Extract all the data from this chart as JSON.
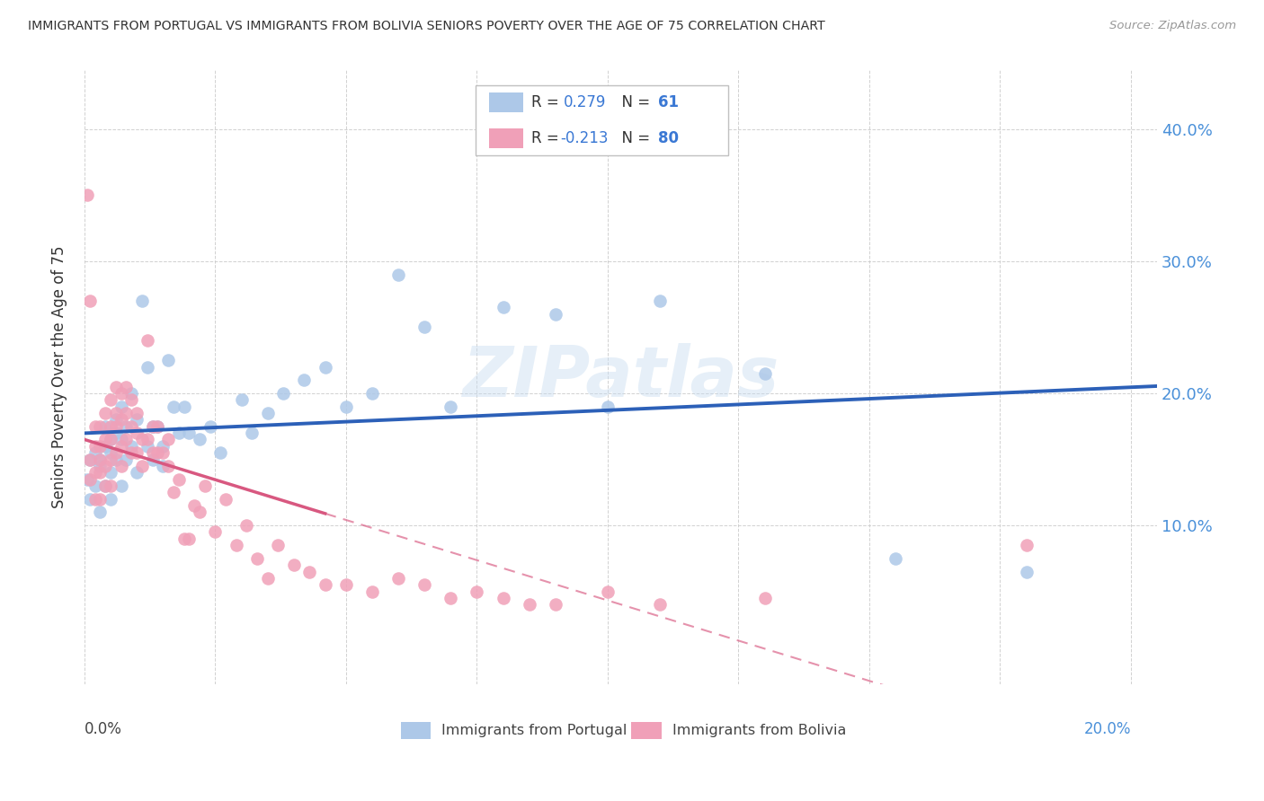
{
  "title": "IMMIGRANTS FROM PORTUGAL VS IMMIGRANTS FROM BOLIVIA SENIORS POVERTY OVER THE AGE OF 75 CORRELATION CHART",
  "source": "Source: ZipAtlas.com",
  "ylabel": "Seniors Poverty Over the Age of 75",
  "ytick_labels": [
    "10.0%",
    "20.0%",
    "30.0%",
    "40.0%"
  ],
  "ytick_values": [
    0.1,
    0.2,
    0.3,
    0.4
  ],
  "xlim": [
    0.0,
    0.205
  ],
  "ylim": [
    -0.02,
    0.445
  ],
  "r_portugal": 0.279,
  "n_portugal": 61,
  "r_bolivia": -0.213,
  "n_bolivia": 80,
  "color_portugal": "#adc8e8",
  "color_bolivia": "#f0a0b8",
  "color_portugal_line": "#2c60b8",
  "color_bolivia_line": "#d85880",
  "watermark": "ZIPatlas",
  "portugal_scatter_x": [
    0.0005,
    0.001,
    0.001,
    0.002,
    0.002,
    0.003,
    0.003,
    0.003,
    0.004,
    0.004,
    0.004,
    0.005,
    0.005,
    0.005,
    0.005,
    0.006,
    0.006,
    0.006,
    0.007,
    0.007,
    0.007,
    0.008,
    0.008,
    0.009,
    0.009,
    0.01,
    0.01,
    0.011,
    0.012,
    0.012,
    0.013,
    0.013,
    0.014,
    0.015,
    0.015,
    0.016,
    0.017,
    0.018,
    0.019,
    0.02,
    0.022,
    0.024,
    0.026,
    0.03,
    0.032,
    0.035,
    0.038,
    0.042,
    0.046,
    0.05,
    0.055,
    0.06,
    0.065,
    0.07,
    0.08,
    0.09,
    0.1,
    0.11,
    0.13,
    0.155,
    0.18
  ],
  "portugal_scatter_y": [
    0.135,
    0.15,
    0.12,
    0.155,
    0.13,
    0.15,
    0.145,
    0.11,
    0.16,
    0.13,
    0.175,
    0.155,
    0.165,
    0.14,
    0.12,
    0.17,
    0.18,
    0.15,
    0.165,
    0.19,
    0.13,
    0.175,
    0.15,
    0.2,
    0.16,
    0.14,
    0.18,
    0.27,
    0.16,
    0.22,
    0.15,
    0.175,
    0.175,
    0.16,
    0.145,
    0.225,
    0.19,
    0.17,
    0.19,
    0.17,
    0.165,
    0.175,
    0.155,
    0.195,
    0.17,
    0.185,
    0.2,
    0.21,
    0.22,
    0.19,
    0.2,
    0.29,
    0.25,
    0.19,
    0.265,
    0.26,
    0.19,
    0.27,
    0.215,
    0.075,
    0.065
  ],
  "bolivia_scatter_x": [
    0.0005,
    0.001,
    0.001,
    0.001,
    0.002,
    0.002,
    0.002,
    0.002,
    0.003,
    0.003,
    0.003,
    0.003,
    0.003,
    0.004,
    0.004,
    0.004,
    0.004,
    0.005,
    0.005,
    0.005,
    0.005,
    0.005,
    0.006,
    0.006,
    0.006,
    0.006,
    0.007,
    0.007,
    0.007,
    0.007,
    0.008,
    0.008,
    0.008,
    0.009,
    0.009,
    0.009,
    0.01,
    0.01,
    0.01,
    0.011,
    0.011,
    0.012,
    0.012,
    0.013,
    0.013,
    0.014,
    0.014,
    0.015,
    0.016,
    0.016,
    0.017,
    0.018,
    0.019,
    0.02,
    0.021,
    0.022,
    0.023,
    0.025,
    0.027,
    0.029,
    0.031,
    0.033,
    0.035,
    0.037,
    0.04,
    0.043,
    0.046,
    0.05,
    0.055,
    0.06,
    0.065,
    0.07,
    0.075,
    0.08,
    0.085,
    0.09,
    0.1,
    0.11,
    0.13,
    0.18
  ],
  "bolivia_scatter_y": [
    0.35,
    0.27,
    0.15,
    0.135,
    0.175,
    0.16,
    0.14,
    0.12,
    0.175,
    0.16,
    0.15,
    0.14,
    0.12,
    0.185,
    0.165,
    0.145,
    0.13,
    0.195,
    0.175,
    0.165,
    0.15,
    0.13,
    0.205,
    0.185,
    0.175,
    0.155,
    0.2,
    0.18,
    0.16,
    0.145,
    0.205,
    0.185,
    0.165,
    0.195,
    0.175,
    0.155,
    0.185,
    0.17,
    0.155,
    0.165,
    0.145,
    0.24,
    0.165,
    0.175,
    0.155,
    0.175,
    0.155,
    0.155,
    0.165,
    0.145,
    0.125,
    0.135,
    0.09,
    0.09,
    0.115,
    0.11,
    0.13,
    0.095,
    0.12,
    0.085,
    0.1,
    0.075,
    0.06,
    0.085,
    0.07,
    0.065,
    0.055,
    0.055,
    0.05,
    0.06,
    0.055,
    0.045,
    0.05,
    0.045,
    0.04,
    0.04,
    0.05,
    0.04,
    0.045,
    0.085
  ]
}
